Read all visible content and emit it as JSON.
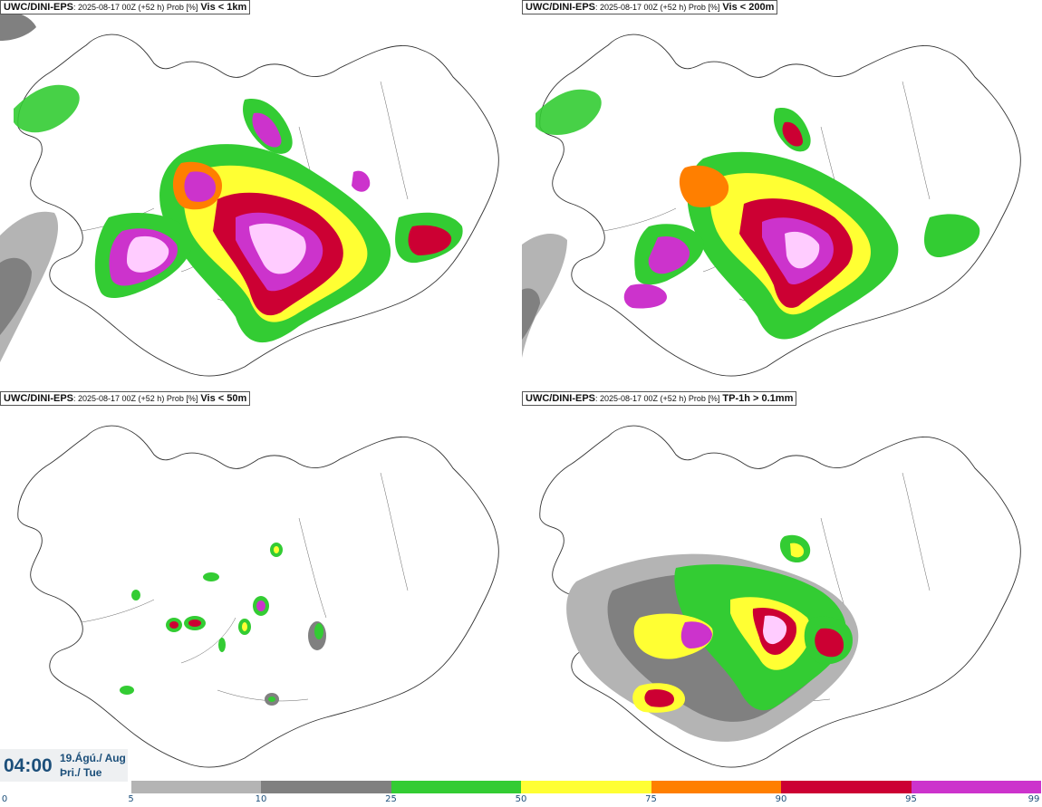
{
  "panels": [
    {
      "model": "UWC/DINI-EPS",
      "info": ": 2025-08-17 00Z (+52 h) Prob [%]",
      "threshold": "Vis < 1km"
    },
    {
      "model": "UWC/DINI-EPS",
      "info": ": 2025-08-17 00Z (+52 h) Prob [%]",
      "threshold": "Vis < 200m"
    },
    {
      "model": "UWC/DINI-EPS",
      "info": ": 2025-08-17 00Z (+52 h) Prob [%]",
      "threshold": "Vis < 50m"
    },
    {
      "model": "UWC/DINI-EPS",
      "info": ": 2025-08-17 00Z (+52 h) Prob [%]",
      "threshold": "TP-1h > 0.1mm"
    }
  ],
  "time": {
    "clock": "04:00",
    "date_line1": "19.Ágú./ Aug",
    "date_line2": "Þri./ Tue"
  },
  "legend": {
    "ticks": [
      "0",
      "5",
      "10",
      "25",
      "50",
      "75",
      "90",
      "95",
      "99"
    ],
    "colors": [
      "#ffffff",
      "#b4b4b4",
      "#808080",
      "#33cc33",
      "#ffff33",
      "#ff7f00",
      "#cc0033",
      "#cc33cc",
      "#ffccff"
    ]
  },
  "map_colors": {
    "p5": "#b4b4b4",
    "p10": "#808080",
    "p25": "#33cc33",
    "p50": "#ffff33",
    "p75": "#ff7f00",
    "p90": "#cc0033",
    "p95": "#cc33cc",
    "p99": "#ffccff",
    "coast": "#333333"
  }
}
